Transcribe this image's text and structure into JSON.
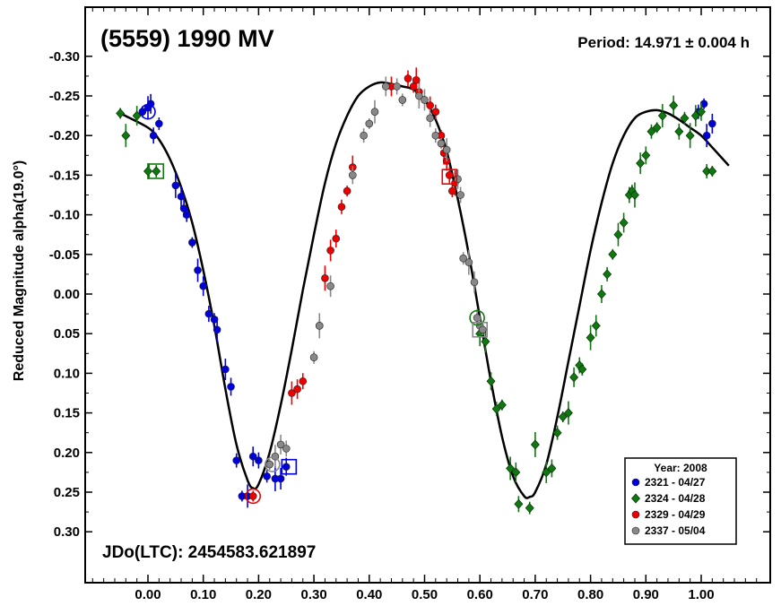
{
  "chart_data": {
    "type": "scatter",
    "title": "(5559) 1990 MV",
    "period_text": "Period: 14.971 ± 0.004 h",
    "epoch_text": "JDo(LTC): 2454583.621897",
    "ylabel": "Reduced Magnitude alpha(19.0°)",
    "xlabel": "",
    "xlim": [
      -0.12,
      1.12
    ],
    "ylim": [
      -0.35,
      0.35
    ],
    "y_inverted": true,
    "x_ticks": [
      "0.00",
      "0.10",
      "0.20",
      "0.30",
      "0.40",
      "0.50",
      "0.60",
      "0.70",
      "0.80",
      "0.90",
      "1.00"
    ],
    "y_ticks": [
      "-0.30",
      "-0.25",
      "-0.20",
      "-0.15",
      "-0.10",
      "-0.05",
      "0.00",
      "0.05",
      "0.10",
      "0.15",
      "0.20",
      "0.25",
      "0.30"
    ],
    "legend": {
      "title": "Year: 2008",
      "position": "bottom-right",
      "entries": [
        "2321 - 04/27",
        "2324 - 04/28",
        "2329 - 04/29",
        "2337 - 05/04"
      ]
    },
    "colors": {
      "blue": "#0000dd",
      "green": "#117711",
      "red": "#ee0000",
      "gray": "#888888",
      "curve": "#000000"
    },
    "curve": {
      "x": [
        -0.05,
        0.0,
        0.02,
        0.04,
        0.06,
        0.08,
        0.1,
        0.12,
        0.14,
        0.16,
        0.18,
        0.19,
        0.2,
        0.22,
        0.24,
        0.26,
        0.28,
        0.3,
        0.32,
        0.34,
        0.36,
        0.38,
        0.4,
        0.42,
        0.44,
        0.46,
        0.48,
        0.5,
        0.52,
        0.54,
        0.56,
        0.58,
        0.6,
        0.62,
        0.64,
        0.66,
        0.68,
        0.69,
        0.7,
        0.72,
        0.74,
        0.76,
        0.78,
        0.8,
        0.82,
        0.84,
        0.86,
        0.88,
        0.9,
        0.92,
        0.94,
        0.96,
        0.98,
        1.0,
        1.02,
        1.05
      ],
      "y": [
        -0.228,
        -0.21,
        -0.195,
        -0.17,
        -0.135,
        -0.09,
        -0.03,
        0.04,
        0.12,
        0.19,
        0.235,
        0.245,
        0.24,
        0.2,
        0.14,
        0.07,
        -0.005,
        -0.075,
        -0.14,
        -0.19,
        -0.225,
        -0.25,
        -0.262,
        -0.267,
        -0.265,
        -0.262,
        -0.258,
        -0.245,
        -0.22,
        -0.18,
        -0.12,
        -0.05,
        0.03,
        0.11,
        0.18,
        0.23,
        0.255,
        0.256,
        0.25,
        0.215,
        0.155,
        0.085,
        0.015,
        -0.055,
        -0.115,
        -0.165,
        -0.2,
        -0.222,
        -0.23,
        -0.232,
        -0.228,
        -0.22,
        -0.21,
        -0.2,
        -0.185,
        -0.162
      ]
    },
    "series": [
      {
        "name": "2321 - 04/27",
        "color": "blue",
        "marker": "circle",
        "points": [
          [
            -0.01,
            -0.23
          ],
          [
            0.0,
            -0.235
          ],
          [
            0.005,
            -0.24
          ],
          [
            0.01,
            -0.2
          ],
          [
            0.02,
            -0.215
          ],
          [
            0.05,
            -0.137
          ],
          [
            0.06,
            -0.123
          ],
          [
            0.065,
            -0.108
          ],
          [
            0.07,
            -0.1
          ],
          [
            0.08,
            -0.065
          ],
          [
            0.09,
            -0.03
          ],
          [
            0.1,
            -0.01
          ],
          [
            0.11,
            0.025
          ],
          [
            0.12,
            0.032
          ],
          [
            0.125,
            0.045
          ],
          [
            0.14,
            0.095
          ],
          [
            0.15,
            0.117
          ],
          [
            0.16,
            0.21
          ],
          [
            0.17,
            0.255
          ],
          [
            0.18,
            0.255
          ],
          [
            0.19,
            0.205
          ],
          [
            0.2,
            0.21
          ],
          [
            0.215,
            0.23
          ],
          [
            0.23,
            0.233
          ],
          [
            0.24,
            0.233
          ],
          [
            0.25,
            0.218
          ],
          [
            0.995,
            -0.23
          ],
          [
            1.005,
            -0.24
          ],
          [
            1.01,
            -0.2
          ],
          [
            1.02,
            -0.215
          ]
        ]
      },
      {
        "name": "2324 - 04/28",
        "color": "green",
        "marker": "diamond",
        "points": [
          [
            -0.05,
            -0.228
          ],
          [
            -0.04,
            -0.2
          ],
          [
            -0.02,
            -0.225
          ],
          [
            0.0,
            -0.155
          ],
          [
            0.015,
            -0.155
          ],
          [
            0.6,
            0.05
          ],
          [
            0.61,
            0.06
          ],
          [
            0.62,
            0.11
          ],
          [
            0.63,
            0.145
          ],
          [
            0.64,
            0.14
          ],
          [
            0.655,
            0.22
          ],
          [
            0.665,
            0.225
          ],
          [
            0.67,
            0.265
          ],
          [
            0.69,
            0.27
          ],
          [
            0.7,
            0.19
          ],
          [
            0.72,
            0.225
          ],
          [
            0.73,
            0.22
          ],
          [
            0.74,
            0.175
          ],
          [
            0.75,
            0.155
          ],
          [
            0.76,
            0.15
          ],
          [
            0.77,
            0.105
          ],
          [
            0.78,
            0.09
          ],
          [
            0.785,
            0.095
          ],
          [
            0.8,
            0.055
          ],
          [
            0.81,
            0.04
          ],
          [
            0.82,
            0.0
          ],
          [
            0.83,
            -0.025
          ],
          [
            0.84,
            -0.05
          ],
          [
            0.85,
            -0.075
          ],
          [
            0.86,
            -0.09
          ],
          [
            0.87,
            -0.125
          ],
          [
            0.875,
            -0.13
          ],
          [
            0.88,
            -0.125
          ],
          [
            0.89,
            -0.165
          ],
          [
            0.9,
            -0.175
          ],
          [
            0.91,
            -0.205
          ],
          [
            0.92,
            -0.21
          ],
          [
            0.93,
            -0.225
          ],
          [
            0.95,
            -0.238
          ],
          [
            0.96,
            -0.205
          ],
          [
            0.97,
            -0.222
          ],
          [
            0.98,
            -0.2
          ],
          [
            0.99,
            -0.225
          ],
          [
            1.0,
            -0.23
          ],
          [
            1.01,
            -0.155
          ],
          [
            1.02,
            -0.155
          ]
        ]
      },
      {
        "name": "2329 - 04/29",
        "color": "red",
        "marker": "circle",
        "points": [
          [
            0.19,
            0.255
          ],
          [
            0.26,
            0.125
          ],
          [
            0.27,
            0.12
          ],
          [
            0.28,
            0.11
          ],
          [
            0.31,
            0.04
          ],
          [
            0.32,
            -0.02
          ],
          [
            0.33,
            -0.055
          ],
          [
            0.34,
            -0.07
          ],
          [
            0.35,
            -0.11
          ],
          [
            0.36,
            -0.13
          ],
          [
            0.37,
            -0.16
          ],
          [
            0.44,
            -0.262
          ],
          [
            0.47,
            -0.272
          ],
          [
            0.48,
            -0.262
          ],
          [
            0.485,
            -0.27
          ],
          [
            0.49,
            -0.255
          ],
          [
            0.51,
            -0.238
          ],
          [
            0.52,
            -0.23
          ],
          [
            0.53,
            -0.2
          ],
          [
            0.535,
            -0.178
          ],
          [
            0.54,
            -0.168
          ],
          [
            0.545,
            -0.15
          ],
          [
            0.55,
            -0.13
          ],
          [
            0.555,
            -0.14
          ]
        ]
      },
      {
        "name": "2337 - 05/04",
        "color": "gray",
        "marker": "circle",
        "points": [
          [
            0.22,
            0.215
          ],
          [
            0.23,
            0.205
          ],
          [
            0.24,
            0.19
          ],
          [
            0.25,
            0.195
          ],
          [
            0.3,
            0.08
          ],
          [
            0.31,
            0.04
          ],
          [
            0.33,
            -0.01
          ],
          [
            0.37,
            -0.15
          ],
          [
            0.39,
            -0.2
          ],
          [
            0.4,
            -0.215
          ],
          [
            0.41,
            -0.23
          ],
          [
            0.43,
            -0.262
          ],
          [
            0.45,
            -0.262
          ],
          [
            0.46,
            -0.245
          ],
          [
            0.49,
            -0.25
          ],
          [
            0.5,
            -0.245
          ],
          [
            0.51,
            -0.222
          ],
          [
            0.52,
            -0.2
          ],
          [
            0.53,
            -0.19
          ],
          [
            0.54,
            -0.182
          ],
          [
            0.56,
            -0.145
          ],
          [
            0.565,
            -0.125
          ],
          [
            0.57,
            -0.045
          ],
          [
            0.58,
            -0.04
          ],
          [
            0.59,
            -0.015
          ],
          [
            0.595,
            0.03
          ],
          [
            0.6,
            0.04
          ],
          [
            0.605,
            0.045
          ]
        ]
      }
    ],
    "markers_open": [
      {
        "x": 0.0,
        "y": -0.23,
        "color": "blue",
        "shape": "circle"
      },
      {
        "x": 0.015,
        "y": -0.155,
        "color": "green",
        "shape": "square"
      },
      {
        "x": 0.19,
        "y": 0.255,
        "color": "red",
        "shape": "circle"
      },
      {
        "x": 0.225,
        "y": 0.215,
        "color": "gray",
        "shape": "circle"
      },
      {
        "x": 0.255,
        "y": 0.218,
        "color": "blue",
        "shape": "square"
      },
      {
        "x": 0.545,
        "y": -0.148,
        "color": "red",
        "shape": "square"
      },
      {
        "x": 0.595,
        "y": 0.03,
        "color": "green",
        "shape": "circle"
      },
      {
        "x": 0.6,
        "y": 0.045,
        "color": "gray",
        "shape": "square"
      }
    ]
  }
}
